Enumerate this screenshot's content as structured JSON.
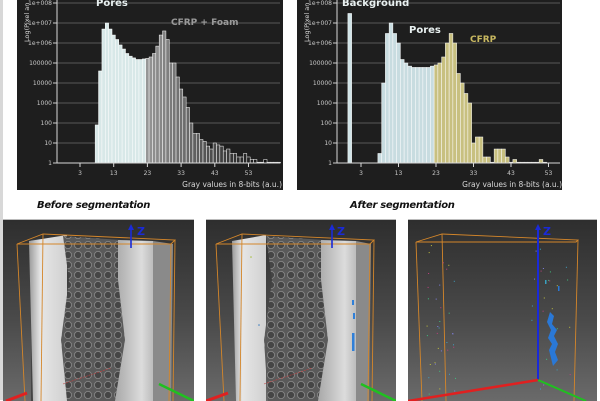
{
  "figure": {
    "caption_before": "Before segmentation",
    "caption_after": "After segmentation"
  },
  "chart_data": [
    {
      "type": "bar",
      "id": "histogram-before",
      "title": "",
      "xlabel": "Gray values in 8-bits (a.u.)",
      "ylabel": "Log(Pixel an",
      "yscale": "log",
      "ylim": [
        1,
        100000000
      ],
      "ytick_labels": [
        "1",
        "10",
        "100",
        "1000",
        "10000",
        "100000",
        "1e+006",
        "1e+007",
        "1e+008"
      ],
      "xtick_labels": [
        "3",
        "13",
        "23",
        "33",
        "43",
        "53"
      ],
      "grid": true,
      "annotations": [
        {
          "text": "Pores",
          "color": "#e8f0f0"
        },
        {
          "text": "CFRP + Foam",
          "color": "#9a9a9a"
        }
      ],
      "series": [
        {
          "name": "Pores",
          "color": "#d8e8e8",
          "x": [
            8,
            9,
            10,
            11,
            12,
            13,
            14,
            15,
            16,
            17,
            18,
            19,
            20,
            21,
            22
          ],
          "values": [
            80,
            40000,
            5000000,
            10000000,
            5000000,
            2500000,
            1500000,
            800000,
            500000,
            300000,
            220000,
            180000,
            150000,
            150000,
            160000
          ]
        },
        {
          "name": "CFRP + Foam",
          "color": "#8a8a8a",
          "x": [
            23,
            24,
            25,
            26,
            27,
            28,
            29,
            30,
            31,
            32,
            33,
            34,
            35,
            36,
            37,
            38,
            39,
            40,
            41,
            42,
            43,
            44,
            45,
            46,
            47,
            48,
            49,
            50,
            51,
            52,
            53,
            54,
            55,
            56,
            57,
            58,
            59,
            60,
            61,
            62
          ],
          "values": [
            170000,
            200000,
            300000,
            700000,
            2500000,
            4000000,
            1500000,
            100000,
            100000,
            20000,
            5000,
            2000,
            600,
            100,
            30,
            30,
            15,
            12,
            7,
            5,
            10,
            8,
            7,
            4,
            5,
            3,
            3,
            2,
            2,
            3,
            2,
            1.5,
            1.5,
            1,
            1,
            1.5,
            1,
            1,
            1,
            1
          ]
        }
      ]
    },
    {
      "type": "bar",
      "id": "histogram-after",
      "title": "",
      "xlabel": "Gray values in 8-bits (a.u.)",
      "ylabel": "Log(Pixel an",
      "yscale": "log",
      "ylim": [
        1,
        100000000
      ],
      "ytick_labels": [
        "1",
        "10",
        "100",
        "1000",
        "10000",
        "100000",
        "1e+006",
        "1e+007",
        "1e+008"
      ],
      "xtick_labels": [
        "3",
        "13",
        "23",
        "33",
        "43",
        "53"
      ],
      "grid": true,
      "annotations": [
        {
          "text": "Background",
          "color": "#e8f0f0"
        },
        {
          "text": "Pores",
          "color": "#e8f0f0"
        },
        {
          "text": "CFRP",
          "color": "#c8b860"
        }
      ],
      "series": [
        {
          "name": "Background",
          "color": "#d0e4e8",
          "x": [
            0
          ],
          "values": [
            30000000
          ]
        },
        {
          "name": "Pores",
          "color": "#c8dce0",
          "x": [
            8,
            9,
            10,
            11,
            12,
            13,
            14,
            15,
            16,
            17,
            18,
            19,
            20,
            21,
            22
          ],
          "values": [
            3,
            10000,
            3000000,
            10000000,
            3000000,
            1000000,
            150000,
            100000,
            70000,
            60000,
            60000,
            60000,
            60000,
            60000,
            70000
          ]
        },
        {
          "name": "CFRP",
          "color": "#c8c080",
          "x": [
            23,
            24,
            25,
            26,
            27,
            28,
            29,
            30,
            31,
            32,
            33,
            34,
            35,
            36,
            37,
            38,
            39,
            40,
            41,
            42,
            43,
            44,
            45,
            46,
            47,
            48,
            49,
            50,
            51,
            52
          ],
          "values": [
            80000,
            100000,
            200000,
            1000000,
            3000000,
            1000000,
            30000,
            10000,
            3000,
            1000,
            10,
            20,
            20,
            2,
            2,
            0,
            5,
            5,
            5,
            2,
            0,
            1.5,
            0,
            0,
            0,
            0,
            0,
            0,
            1.5,
            0
          ]
        }
      ]
    }
  ],
  "render_panels": [
    {
      "id": "before",
      "axis_label": "Z"
    },
    {
      "id": "after-volume",
      "axis_label": "Z"
    },
    {
      "id": "after-pores",
      "axis_label": "Z"
    }
  ]
}
